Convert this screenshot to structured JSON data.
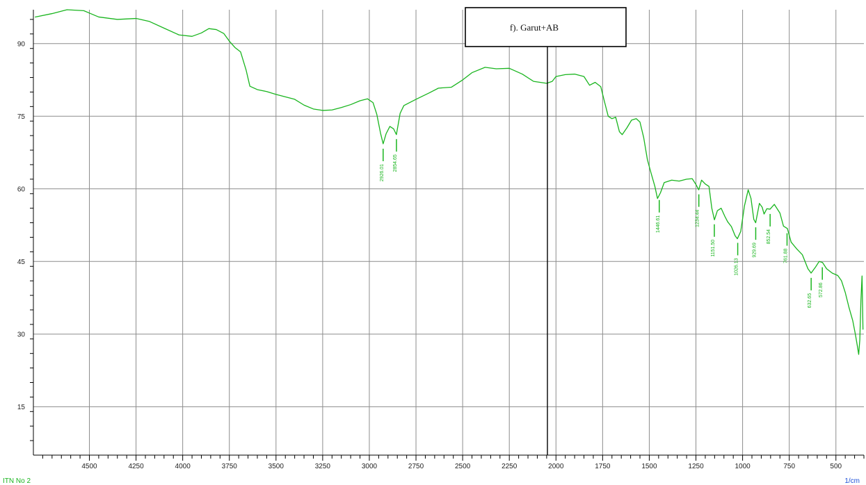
{
  "chart_data": {
    "type": "line",
    "title": "f). Garut+AB",
    "xlabel": "1/cm",
    "ylabel": "",
    "xlim": [
      4800,
      350
    ],
    "ylim": [
      5,
      97
    ],
    "x_ticks": [
      4500,
      4250,
      4000,
      3750,
      3500,
      3250,
      3000,
      2750,
      2500,
      2250,
      2000,
      1750,
      1500,
      1250,
      1000,
      750,
      500
    ],
    "y_ticks": [
      90,
      75,
      60,
      45,
      30,
      15
    ],
    "grid": true,
    "legend": "none",
    "footer_text": "ITN No 2",
    "line_color": "#19b51e",
    "peak_color": "#19b51e",
    "series": [
      {
        "values": [
          {
            "x": 4790,
            "y": 95.5
          },
          {
            "x": 4700,
            "y": 96.2
          },
          {
            "x": 4620,
            "y": 97.0
          },
          {
            "x": 4530,
            "y": 96.8
          },
          {
            "x": 4450,
            "y": 95.5
          },
          {
            "x": 4350,
            "y": 95.0
          },
          {
            "x": 4250,
            "y": 95.2
          },
          {
            "x": 4180,
            "y": 94.6
          },
          {
            "x": 4100,
            "y": 93.2
          },
          {
            "x": 4020,
            "y": 91.8
          },
          {
            "x": 3950,
            "y": 91.5
          },
          {
            "x": 3900,
            "y": 92.2
          },
          {
            "x": 3860,
            "y": 93.1
          },
          {
            "x": 3820,
            "y": 92.9
          },
          {
            "x": 3780,
            "y": 92.1
          },
          {
            "x": 3750,
            "y": 90.5
          },
          {
            "x": 3720,
            "y": 89.2
          },
          {
            "x": 3690,
            "y": 88.3
          },
          {
            "x": 3660,
            "y": 84.5
          },
          {
            "x": 3640,
            "y": 81.2
          },
          {
            "x": 3600,
            "y": 80.5
          },
          {
            "x": 3550,
            "y": 80.1
          },
          {
            "x": 3500,
            "y": 79.5
          },
          {
            "x": 3450,
            "y": 79.0
          },
          {
            "x": 3400,
            "y": 78.5
          },
          {
            "x": 3350,
            "y": 77.3
          },
          {
            "x": 3300,
            "y": 76.5
          },
          {
            "x": 3250,
            "y": 76.2
          },
          {
            "x": 3200,
            "y": 76.3
          },
          {
            "x": 3150,
            "y": 76.8
          },
          {
            "x": 3100,
            "y": 77.4
          },
          {
            "x": 3050,
            "y": 78.2
          },
          {
            "x": 3010,
            "y": 78.6
          },
          {
            "x": 2980,
            "y": 77.8
          },
          {
            "x": 2960,
            "y": 75.4
          },
          {
            "x": 2940,
            "y": 71.5
          },
          {
            "x": 2926,
            "y": 69.3
          },
          {
            "x": 2910,
            "y": 71.4
          },
          {
            "x": 2890,
            "y": 72.9
          },
          {
            "x": 2870,
            "y": 72.4
          },
          {
            "x": 2855,
            "y": 71.2
          },
          {
            "x": 2835,
            "y": 75.6
          },
          {
            "x": 2815,
            "y": 77.2
          },
          {
            "x": 2750,
            "y": 78.5
          },
          {
            "x": 2680,
            "y": 79.8
          },
          {
            "x": 2630,
            "y": 80.8
          },
          {
            "x": 2560,
            "y": 81.0
          },
          {
            "x": 2500,
            "y": 82.5
          },
          {
            "x": 2450,
            "y": 84.0
          },
          {
            "x": 2380,
            "y": 85.1
          },
          {
            "x": 2320,
            "y": 84.8
          },
          {
            "x": 2250,
            "y": 84.9
          },
          {
            "x": 2180,
            "y": 83.7
          },
          {
            "x": 2120,
            "y": 82.2
          },
          {
            "x": 2050,
            "y": 81.8
          },
          {
            "x": 2020,
            "y": 82.2
          },
          {
            "x": 2000,
            "y": 83.2
          },
          {
            "x": 1950,
            "y": 83.6
          },
          {
            "x": 1900,
            "y": 83.7
          },
          {
            "x": 1850,
            "y": 83.2
          },
          {
            "x": 1820,
            "y": 81.4
          },
          {
            "x": 1790,
            "y": 82.0
          },
          {
            "x": 1760,
            "y": 81.1
          },
          {
            "x": 1740,
            "y": 78.0
          },
          {
            "x": 1720,
            "y": 75.0
          },
          {
            "x": 1700,
            "y": 74.5
          },
          {
            "x": 1680,
            "y": 74.8
          },
          {
            "x": 1660,
            "y": 71.8
          },
          {
            "x": 1645,
            "y": 71.2
          },
          {
            "x": 1620,
            "y": 72.6
          },
          {
            "x": 1595,
            "y": 74.2
          },
          {
            "x": 1570,
            "y": 74.5
          },
          {
            "x": 1550,
            "y": 73.8
          },
          {
            "x": 1530,
            "y": 70.6
          },
          {
            "x": 1510,
            "y": 66.0
          },
          {
            "x": 1490,
            "y": 63.2
          },
          {
            "x": 1470,
            "y": 60.5
          },
          {
            "x": 1456,
            "y": 58.0
          },
          {
            "x": 1440,
            "y": 59.2
          },
          {
            "x": 1420,
            "y": 61.3
          },
          {
            "x": 1380,
            "y": 61.8
          },
          {
            "x": 1340,
            "y": 61.6
          },
          {
            "x": 1300,
            "y": 62.0
          },
          {
            "x": 1270,
            "y": 62.1
          },
          {
            "x": 1250,
            "y": 60.9
          },
          {
            "x": 1235,
            "y": 59.8
          },
          {
            "x": 1220,
            "y": 61.8
          },
          {
            "x": 1200,
            "y": 61.0
          },
          {
            "x": 1180,
            "y": 60.5
          },
          {
            "x": 1165,
            "y": 56.0
          },
          {
            "x": 1151,
            "y": 53.6
          },
          {
            "x": 1135,
            "y": 55.5
          },
          {
            "x": 1115,
            "y": 56.0
          },
          {
            "x": 1095,
            "y": 54.3
          },
          {
            "x": 1080,
            "y": 53.2
          },
          {
            "x": 1060,
            "y": 52.2
          },
          {
            "x": 1040,
            "y": 50.3
          },
          {
            "x": 1028,
            "y": 49.7
          },
          {
            "x": 1010,
            "y": 51.2
          },
          {
            "x": 990,
            "y": 56.5
          },
          {
            "x": 970,
            "y": 59.8
          },
          {
            "x": 955,
            "y": 58.0
          },
          {
            "x": 940,
            "y": 53.7
          },
          {
            "x": 930,
            "y": 53.0
          },
          {
            "x": 910,
            "y": 57.0
          },
          {
            "x": 895,
            "y": 56.2
          },
          {
            "x": 885,
            "y": 54.8
          },
          {
            "x": 870,
            "y": 55.9
          },
          {
            "x": 853,
            "y": 55.8
          },
          {
            "x": 830,
            "y": 56.8
          },
          {
            "x": 800,
            "y": 55.0
          },
          {
            "x": 781,
            "y": 52.3
          },
          {
            "x": 760,
            "y": 51.8
          },
          {
            "x": 740,
            "y": 49.0
          },
          {
            "x": 710,
            "y": 47.6
          },
          {
            "x": 680,
            "y": 46.4
          },
          {
            "x": 650,
            "y": 43.5
          },
          {
            "x": 633,
            "y": 42.6
          },
          {
            "x": 610,
            "y": 43.8
          },
          {
            "x": 590,
            "y": 45.0
          },
          {
            "x": 572,
            "y": 44.8
          },
          {
            "x": 550,
            "y": 43.5
          },
          {
            "x": 520,
            "y": 42.6
          },
          {
            "x": 490,
            "y": 42.1
          },
          {
            "x": 470,
            "y": 41.0
          },
          {
            "x": 450,
            "y": 38.6
          },
          {
            "x": 430,
            "y": 35.5
          },
          {
            "x": 410,
            "y": 32.8
          },
          {
            "x": 395,
            "y": 29.8
          },
          {
            "x": 385,
            "y": 27.5
          },
          {
            "x": 378,
            "y": 25.8
          },
          {
            "x": 372,
            "y": 28.8
          },
          {
            "x": 366,
            "y": 37.0
          },
          {
            "x": 360,
            "y": 42.0
          },
          {
            "x": 355,
            "y": 31.0
          }
        ]
      }
    ],
    "peaks": [
      {
        "x": 2926.01,
        "label": "2926.01"
      },
      {
        "x": 2854.65,
        "label": "2854.65"
      },
      {
        "x": 1446.61,
        "label": "1446.61"
      },
      {
        "x": 1234.44,
        "label": "1234.44"
      },
      {
        "x": 1151.5,
        "label": "1151.50"
      },
      {
        "x": 1026.13,
        "label": "1026.13"
      },
      {
        "x": 929.69,
        "label": "929.69"
      },
      {
        "x": 852.54,
        "label": "852.54"
      },
      {
        "x": 761.88,
        "label": "761.88"
      },
      {
        "x": 632.65,
        "label": "632.65"
      },
      {
        "x": 572.86,
        "label": "572.86"
      }
    ]
  }
}
